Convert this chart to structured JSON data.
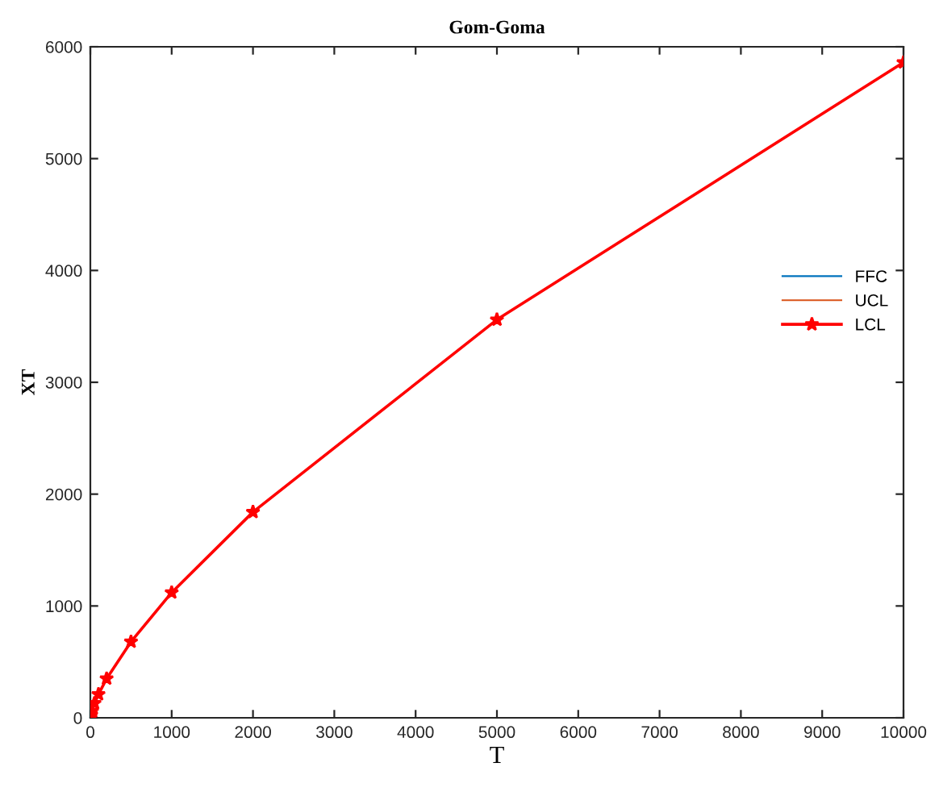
{
  "chart_data": {
    "type": "line",
    "title": "Gom-Goma",
    "xlabel": "T",
    "ylabel": "XT",
    "x": [
      2,
      5,
      10,
      20,
      50,
      100,
      200,
      500,
      1000,
      2000,
      5000,
      10000
    ],
    "series": [
      {
        "name": "FFC",
        "color": "#0072bd",
        "values": [
          null,
          null,
          null,
          null,
          null,
          null,
          null,
          null,
          null,
          null,
          null,
          null
        ]
      },
      {
        "name": "UCL",
        "color": "#d95319",
        "values": [
          null,
          null,
          null,
          null,
          null,
          null,
          null,
          null,
          null,
          null,
          null,
          null
        ]
      },
      {
        "name": "LCL",
        "color": "#ff0000",
        "marker": "star",
        "values": [
          0,
          20,
          30,
          60,
          130,
          210,
          350,
          680,
          1120,
          1840,
          3560,
          5860
        ]
      }
    ],
    "xlim": [
      0,
      10000
    ],
    "xticks": [
      0,
      1000,
      2000,
      3000,
      4000,
      5000,
      6000,
      7000,
      8000,
      9000,
      10000
    ],
    "ylim": [
      0,
      6000
    ],
    "yticks": [
      0,
      1000,
      2000,
      3000,
      4000,
      5000,
      6000
    ],
    "legend": "right",
    "grid": false
  }
}
